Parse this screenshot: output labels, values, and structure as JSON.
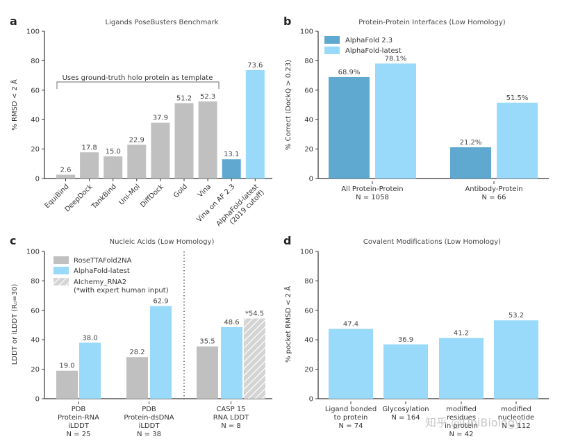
{
  "colors": {
    "gray": "#c0c0c0",
    "light_blue": "#99d9f9",
    "dark_blue": "#5fa8cf",
    "axis": "#333333"
  },
  "watermark": "知乎 @UniBiology",
  "chart_data": [
    {
      "panel_label": "a",
      "type": "bar",
      "title": "Ligands PoseBusters Benchmark",
      "ylabel": "% RMSD < 2 Å",
      "ylim": [
        0,
        100
      ],
      "yticks": [
        0,
        20,
        40,
        60,
        80,
        100
      ],
      "categories": [
        "EquiBind",
        "DeepDock",
        "TankBind",
        "Uni-Mol",
        "DiffDock",
        "Gold",
        "Vina",
        "Vina on AF 2.3",
        "AlphaFold-latest\n(2019 cutoff)"
      ],
      "values": [
        2.6,
        17.8,
        15.0,
        22.9,
        37.9,
        51.2,
        52.3,
        13.1,
        73.6
      ],
      "value_labels": [
        "2.6",
        "17.8",
        "15.0",
        "22.9",
        "37.9",
        "51.2",
        "52.3",
        "13.1",
        "73.6"
      ],
      "bar_colors": [
        "gray",
        "gray",
        "gray",
        "gray",
        "gray",
        "gray",
        "gray",
        "dark_blue",
        "light_blue"
      ],
      "annotation": "Uses ground-truth holo protein as template"
    },
    {
      "panel_label": "b",
      "type": "bar",
      "title": "Protein-Protein Interfaces (Low Homology)",
      "ylabel": "% Correct (DockQ > 0.23)",
      "ylim": [
        0,
        100
      ],
      "yticks": [
        0,
        20,
        40,
        60,
        80,
        100
      ],
      "categories": [
        "All Protein-Protein\nN = 1058",
        "Antibody-Protein\nN = 66"
      ],
      "series": [
        {
          "name": "AlphaFold 2.3",
          "color": "dark_blue",
          "values": [
            68.9,
            21.2
          ],
          "labels": [
            "68.9%",
            "21.2%"
          ]
        },
        {
          "name": "AlphaFold-latest",
          "color": "light_blue",
          "values": [
            78.1,
            51.5
          ],
          "labels": [
            "78.1%",
            "51.5%"
          ]
        }
      ]
    },
    {
      "panel_label": "c",
      "type": "bar",
      "title": "Nucleic Acids (Low Homology)",
      "ylabel": "LDDT or iLDDT (R₀=30)",
      "ylim": [
        0,
        100
      ],
      "yticks": [
        0,
        20,
        40,
        60,
        80,
        100
      ],
      "categories": [
        "PDB\nProtein-RNA\niLDDT\nN = 25",
        "PDB\nProtein-dsDNA\niLDDT\nN = 38",
        "CASP 15\nRNA LDDT\nN = 8"
      ],
      "series": [
        {
          "name": "RoseTTAFold2NA",
          "color": "gray",
          "values": [
            19.0,
            28.2,
            35.5
          ],
          "labels": [
            "19.0",
            "28.2",
            "35.5"
          ]
        },
        {
          "name": "AlphaFold-latest",
          "color": "light_blue",
          "values": [
            38.0,
            62.9,
            48.6
          ],
          "labels": [
            "38.0",
            "62.9",
            "48.6"
          ]
        },
        {
          "name": "AIchemy_RNA2\n(*with expert human input)",
          "color": "hatched",
          "values": [
            null,
            null,
            54.5
          ],
          "labels": [
            "",
            "",
            "*54.5"
          ]
        }
      ]
    },
    {
      "panel_label": "d",
      "type": "bar",
      "title": "Covalent Modifications (Low Homology)",
      "ylabel": "% pocket RMSD < 2 Å",
      "ylim": [
        0,
        100
      ],
      "yticks": [
        0,
        20,
        40,
        60,
        80,
        100
      ],
      "categories": [
        "Ligand bonded\nto protein\nN = 74",
        "Glycosylation\nN = 164",
        "modified\nresidues\nin protein\nN = 42",
        "modified\nnucleotide\nN = 112"
      ],
      "values": [
        47.4,
        36.9,
        41.2,
        53.2
      ],
      "value_labels": [
        "47.4",
        "36.9",
        "41.2",
        "53.2"
      ],
      "bar_colors": [
        "light_blue",
        "light_blue",
        "light_blue",
        "light_blue"
      ]
    }
  ]
}
